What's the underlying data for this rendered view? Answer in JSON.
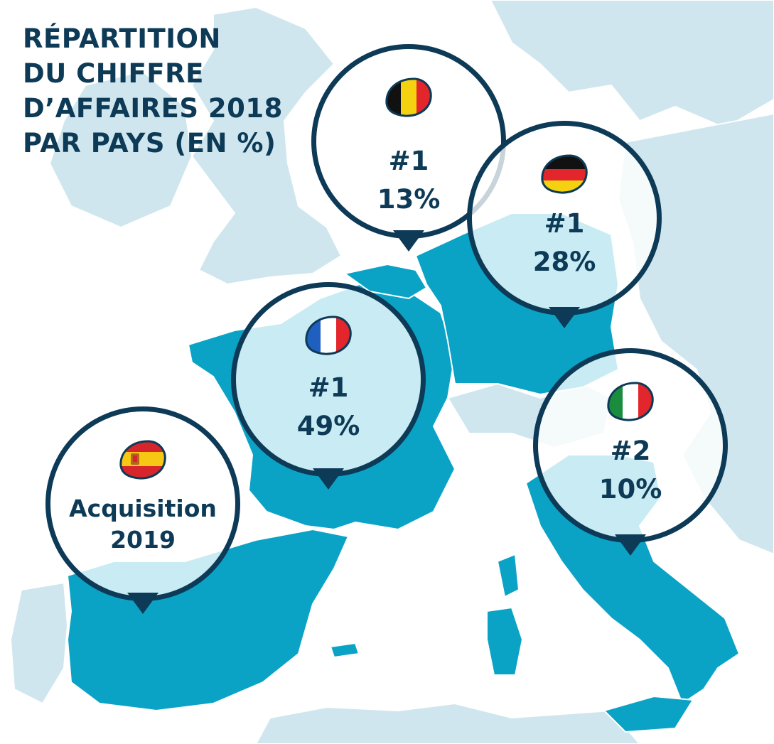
{
  "title": {
    "line1": "RÉPARTITION",
    "line2": "DU CHIFFRE",
    "line3": "D’AFFAIRES 2018",
    "line4": "PAR PAYS (EN %)"
  },
  "markers": {
    "belgium": {
      "rank": "#1",
      "share": "13%",
      "flag_icon": "belgium-flag-icon"
    },
    "germany": {
      "rank": "#1",
      "share": "28%",
      "flag_icon": "germany-flag-icon"
    },
    "france": {
      "rank": "#1",
      "share": "49%",
      "flag_icon": "france-flag-icon"
    },
    "italy": {
      "rank": "#2",
      "share": "10%",
      "flag_icon": "italy-flag-icon"
    },
    "spain": {
      "line1": "Acquisition",
      "line2": "2019",
      "flag_icon": "spain-flag-icon"
    }
  },
  "colors": {
    "highlight_country": "#0aa3c6",
    "other_country": "#cfe6ee",
    "ocean": "#ffffff",
    "marker_border": "#0d3a56",
    "text": "#0d3a56"
  }
}
